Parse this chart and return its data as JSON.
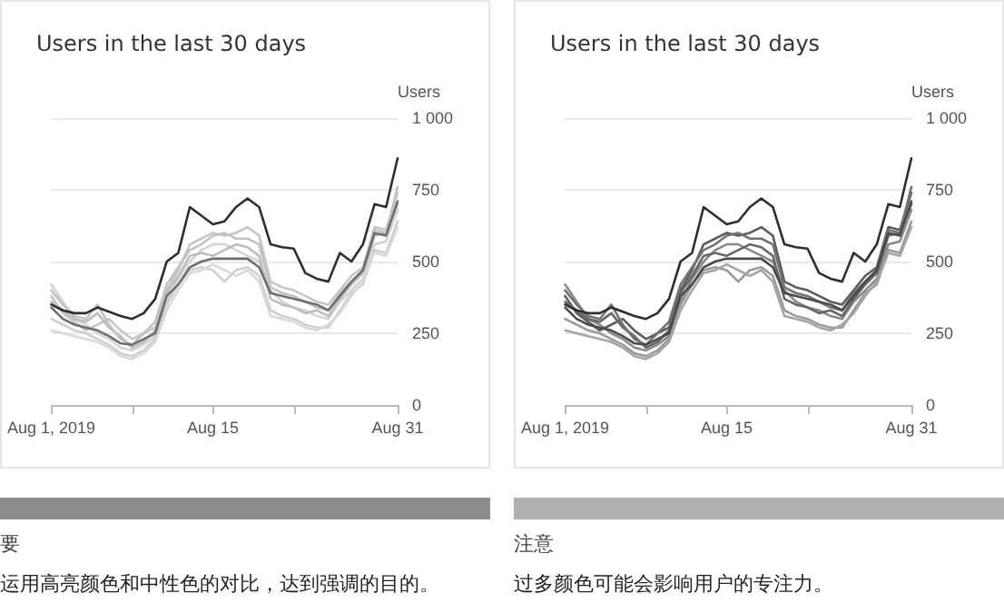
{
  "chart_data": [
    {
      "type": "line",
      "title": "Users in the last 30 days",
      "ylabel": "Users",
      "annotations": [
        "要",
        "运用高亮颜色和中性色的对比，达到强调的目的。"
      ],
      "x": [
        "2019-08-01",
        "2019-08-02",
        "2019-08-03",
        "2019-08-04",
        "2019-08-05",
        "2019-08-06",
        "2019-08-07",
        "2019-08-08",
        "2019-08-09",
        "2019-08-10",
        "2019-08-11",
        "2019-08-12",
        "2019-08-13",
        "2019-08-14",
        "2019-08-15",
        "2019-08-16",
        "2019-08-17",
        "2019-08-18",
        "2019-08-19",
        "2019-08-20",
        "2019-08-21",
        "2019-08-22",
        "2019-08-23",
        "2019-08-24",
        "2019-08-25",
        "2019-08-26",
        "2019-08-27",
        "2019-08-28",
        "2019-08-29",
        "2019-08-30",
        "2019-08-31"
      ],
      "xlim": [
        "2019-08-01",
        "2019-08-31"
      ],
      "xticks": [
        {
          "value": "2019-08-01",
          "label": "Aug 1, 2019"
        },
        {
          "value": "2019-08-08",
          "label": null
        },
        {
          "value": "2019-08-15",
          "label": "Aug 15"
        },
        {
          "value": "2019-08-22",
          "label": null
        },
        {
          "value": "2019-08-31",
          "label": "Aug 31"
        }
      ],
      "ylim": [
        0,
        1000
      ],
      "yticks": [
        0,
        250,
        500,
        750,
        {
          "value": 1000,
          "label": "1 000"
        }
      ],
      "grid": "y",
      "marker": "none",
      "line_style": "solid",
      "series": [
        {
          "color": "#d4d4d4",
          "values": [
            420,
            360,
            300,
            280,
            250,
            230,
            200,
            190,
            210,
            240,
            360,
            440,
            500,
            540,
            560,
            560,
            540,
            520,
            500,
            400,
            360,
            340,
            330,
            310,
            300,
            360,
            400,
            440,
            560,
            570,
            680
          ]
        },
        {
          "color": "#c6c6c6",
          "values": [
            380,
            320,
            290,
            260,
            280,
            300,
            260,
            230,
            250,
            270,
            400,
            470,
            560,
            580,
            600,
            590,
            600,
            620,
            590,
            430,
            410,
            400,
            380,
            360,
            350,
            400,
            450,
            480,
            620,
            610,
            740
          ]
        },
        {
          "color": "#cfcfcf",
          "values": [
            300,
            280,
            260,
            250,
            230,
            210,
            180,
            170,
            190,
            230,
            350,
            420,
            470,
            480,
            470,
            430,
            470,
            480,
            450,
            330,
            310,
            300,
            280,
            270,
            270,
            330,
            390,
            420,
            540,
            530,
            640
          ]
        },
        {
          "color": "#bdbdbd",
          "values": [
            360,
            330,
            300,
            290,
            320,
            270,
            240,
            200,
            220,
            260,
            390,
            450,
            520,
            530,
            520,
            540,
            560,
            550,
            520,
            370,
            350,
            340,
            320,
            330,
            310,
            370,
            420,
            460,
            590,
            600,
            700
          ]
        },
        {
          "color": "#d9d9d9",
          "values": [
            260,
            250,
            240,
            230,
            220,
            200,
            170,
            160,
            180,
            220,
            330,
            400,
            460,
            470,
            490,
            470,
            450,
            470,
            430,
            310,
            300,
            290,
            270,
            260,
            280,
            320,
            380,
            430,
            530,
            520,
            620
          ]
        },
        {
          "color": "#c2c2c2",
          "values": [
            400,
            350,
            310,
            300,
            350,
            280,
            230,
            210,
            250,
            290,
            420,
            480,
            540,
            560,
            590,
            600,
            580,
            580,
            560,
            410,
            390,
            380,
            360,
            340,
            330,
            390,
            430,
            470,
            610,
            600,
            760
          ]
        },
        {
          "color": "#6e6e6e",
          "values": [
            340,
            300,
            280,
            270,
            260,
            240,
            215,
            210,
            230,
            250,
            380,
            420,
            480,
            500,
            510,
            510,
            510,
            510,
            480,
            390,
            380,
            370,
            360,
            350,
            330,
            380,
            430,
            470,
            600,
            590,
            710
          ]
        },
        {
          "color": "#2e2e2e",
          "values": [
            350,
            330,
            320,
            320,
            340,
            325,
            310,
            300,
            320,
            370,
            500,
            530,
            690,
            660,
            630,
            640,
            690,
            720,
            690,
            560,
            550,
            545,
            460,
            440,
            430,
            530,
            500,
            560,
            700,
            690,
            860
          ]
        }
      ]
    },
    {
      "type": "line",
      "title": "Users in the last 30 days",
      "ylabel": "Users",
      "annotations": [
        "注意",
        "过多颜色可能会影响用户的专注力。"
      ],
      "x": [
        "2019-08-01",
        "2019-08-02",
        "2019-08-03",
        "2019-08-04",
        "2019-08-05",
        "2019-08-06",
        "2019-08-07",
        "2019-08-08",
        "2019-08-09",
        "2019-08-10",
        "2019-08-11",
        "2019-08-12",
        "2019-08-13",
        "2019-08-14",
        "2019-08-15",
        "2019-08-16",
        "2019-08-17",
        "2019-08-18",
        "2019-08-19",
        "2019-08-20",
        "2019-08-21",
        "2019-08-22",
        "2019-08-23",
        "2019-08-24",
        "2019-08-25",
        "2019-08-26",
        "2019-08-27",
        "2019-08-28",
        "2019-08-29",
        "2019-08-30",
        "2019-08-31"
      ],
      "xlim": [
        "2019-08-01",
        "2019-08-31"
      ],
      "xticks": [
        {
          "value": "2019-08-01",
          "label": "Aug 1, 2019"
        },
        {
          "value": "2019-08-08",
          "label": null
        },
        {
          "value": "2019-08-15",
          "label": "Aug 15"
        },
        {
          "value": "2019-08-22",
          "label": null
        },
        {
          "value": "2019-08-31",
          "label": "Aug 31"
        }
      ],
      "ylim": [
        0,
        1000
      ],
      "yticks": [
        0,
        250,
        500,
        750,
        {
          "value": 1000,
          "label": "1 000"
        }
      ],
      "grid": "y",
      "marker": "none",
      "line_style": "solid",
      "series": [
        {
          "color": "#8a8a8a",
          "values": [
            420,
            360,
            300,
            280,
            250,
            230,
            200,
            190,
            210,
            240,
            360,
            440,
            500,
            540,
            560,
            560,
            540,
            520,
            500,
            400,
            360,
            340,
            330,
            310,
            300,
            360,
            400,
            440,
            560,
            570,
            680
          ]
        },
        {
          "color": "#5c5c5c",
          "values": [
            380,
            320,
            290,
            260,
            280,
            300,
            260,
            230,
            250,
            270,
            400,
            470,
            560,
            580,
            600,
            590,
            600,
            620,
            590,
            430,
            410,
            400,
            380,
            360,
            350,
            400,
            450,
            480,
            620,
            610,
            740
          ]
        },
        {
          "color": "#9a9a9a",
          "values": [
            300,
            280,
            260,
            250,
            230,
            210,
            180,
            170,
            190,
            230,
            350,
            420,
            470,
            480,
            470,
            430,
            470,
            480,
            450,
            330,
            310,
            300,
            280,
            270,
            270,
            330,
            390,
            420,
            540,
            530,
            640
          ]
        },
        {
          "color": "#666666",
          "values": [
            360,
            330,
            300,
            290,
            320,
            270,
            240,
            200,
            220,
            260,
            390,
            450,
            520,
            530,
            520,
            540,
            560,
            550,
            520,
            370,
            350,
            340,
            320,
            330,
            310,
            370,
            420,
            460,
            590,
            600,
            700
          ]
        },
        {
          "color": "#a5a5a5",
          "values": [
            260,
            250,
            240,
            230,
            220,
            200,
            170,
            160,
            180,
            220,
            330,
            400,
            460,
            470,
            490,
            470,
            450,
            470,
            430,
            310,
            300,
            290,
            270,
            260,
            280,
            320,
            380,
            430,
            530,
            520,
            620
          ]
        },
        {
          "color": "#737373",
          "values": [
            400,
            350,
            310,
            300,
            350,
            280,
            230,
            210,
            250,
            290,
            420,
            480,
            540,
            560,
            590,
            600,
            580,
            580,
            560,
            410,
            390,
            380,
            360,
            340,
            330,
            390,
            430,
            470,
            610,
            600,
            760
          ]
        },
        {
          "color": "#4a4a4a",
          "values": [
            340,
            300,
            280,
            270,
            260,
            240,
            215,
            210,
            230,
            250,
            380,
            420,
            480,
            500,
            510,
            510,
            510,
            510,
            480,
            390,
            380,
            370,
            360,
            350,
            330,
            380,
            430,
            470,
            600,
            590,
            710
          ]
        },
        {
          "color": "#2e2e2e",
          "values": [
            350,
            330,
            320,
            320,
            340,
            325,
            310,
            300,
            320,
            370,
            500,
            530,
            690,
            660,
            630,
            640,
            690,
            720,
            690,
            560,
            550,
            545,
            460,
            440,
            430,
            530,
            500,
            560,
            700,
            690,
            860
          ]
        }
      ]
    }
  ]
}
